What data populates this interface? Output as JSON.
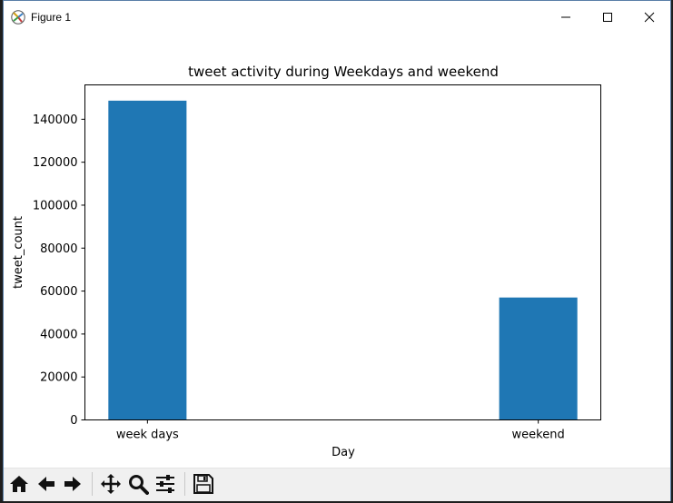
{
  "window": {
    "title": "Figure 1"
  },
  "chart_data": {
    "type": "bar",
    "title": "tweet activity during Weekdays and weekend",
    "xlabel": "Day",
    "ylabel": "tweet_count",
    "categories": [
      "week days",
      "weekend"
    ],
    "values": [
      148657,
      57000
    ],
    "ylim": [
      0,
      156000
    ],
    "yticks": [
      0,
      20000,
      40000,
      60000,
      80000,
      100000,
      120000,
      140000
    ],
    "ytick_labels": [
      "0",
      "20000",
      "40000",
      "60000",
      "80000",
      "100000",
      "120000",
      "140000"
    ],
    "bar_color": "#1f77b4",
    "grid": false,
    "legend": "none"
  },
  "toolbar": {
    "buttons": [
      "home-icon",
      "back-icon",
      "forward-icon",
      "pan-icon",
      "zoom-icon",
      "configure-icon",
      "save-icon"
    ]
  }
}
